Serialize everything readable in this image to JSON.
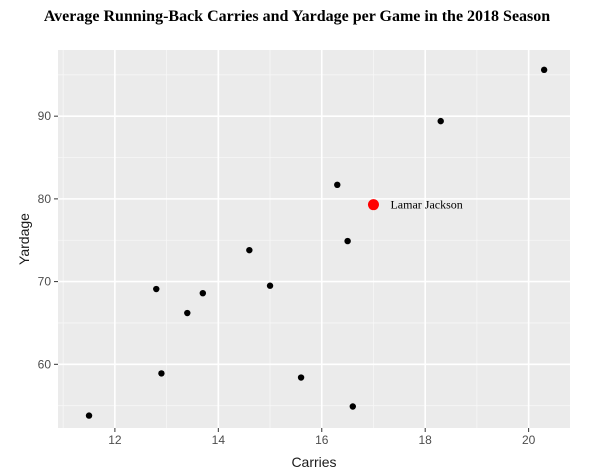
{
  "chart_data": {
    "type": "scatter",
    "title": "Average Running-Back Carries and Yardage per Game in the 2018 Season",
    "xlabel": "Carries",
    "ylabel": "Yardage",
    "xlim": [
      10.9,
      20.8
    ],
    "ylim": [
      52.3,
      98.0
    ],
    "xticks": [
      12,
      14,
      16,
      18,
      20
    ],
    "yticks": [
      60,
      70,
      80,
      90
    ],
    "grid": true,
    "background": "#ebebeb",
    "point_color": "#000000",
    "highlight_color": "#ff0000",
    "points": [
      {
        "x": 11.5,
        "y": 53.8
      },
      {
        "x": 12.8,
        "y": 69.1
      },
      {
        "x": 12.9,
        "y": 58.9
      },
      {
        "x": 13.4,
        "y": 66.2
      },
      {
        "x": 13.7,
        "y": 68.6
      },
      {
        "x": 14.6,
        "y": 73.8
      },
      {
        "x": 15.0,
        "y": 69.5
      },
      {
        "x": 15.6,
        "y": 58.4
      },
      {
        "x": 16.3,
        "y": 81.7
      },
      {
        "x": 16.5,
        "y": 74.9
      },
      {
        "x": 16.6,
        "y": 54.9
      },
      {
        "x": 18.3,
        "y": 89.4
      },
      {
        "x": 20.3,
        "y": 95.6
      }
    ],
    "highlight": {
      "x": 17.0,
      "y": 79.3,
      "label": "Lamar Jackson"
    }
  }
}
